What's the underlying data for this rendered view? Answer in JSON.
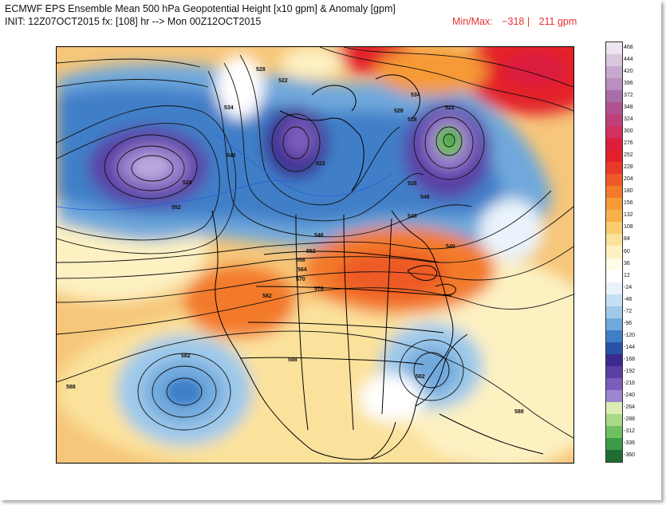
{
  "header": {
    "title": "ECMWF EPS Ensemble Mean 500 hPa Geopotential Height [x10 gpm] & Anomaly [gpm]",
    "subtitle": "INIT: 12Z07OCT2015 fx: [108] hr --> Mon 00Z12OCT2015",
    "minmax_label": "Min/Max:",
    "min_value": "−318 |",
    "max_value": "211 gpm"
  },
  "colorbar": {
    "labels": [
      "468",
      "444",
      "420",
      "396",
      "372",
      "348",
      "324",
      "300",
      "276",
      "252",
      "228",
      "204",
      "180",
      "156",
      "132",
      "108",
      "84",
      "60",
      "36",
      "12",
      "-24",
      "-48",
      "-72",
      "-96",
      "-120",
      "-144",
      "-168",
      "-192",
      "-216",
      "-240",
      "-264",
      "-288",
      "-312",
      "-336",
      "-360"
    ],
    "colors": [
      "#ece4ee",
      "#d8c6dc",
      "#c7a9cd",
      "#b98fbf",
      "#a86da9",
      "#b0528f",
      "#bf4079",
      "#d03260",
      "#dc1e3c",
      "#e3212a",
      "#e83a27",
      "#ee5a27",
      "#f37a2a",
      "#f69a36",
      "#f8b049",
      "#facb70",
      "#fbe29c",
      "#fdf1c2",
      "#fefbe8",
      "#ffffff",
      "#eaf3fb",
      "#c5e0f2",
      "#9ec9ea",
      "#6fa8dc",
      "#3f7fc8",
      "#2852a8",
      "#3a2a8f",
      "#5a3fa6",
      "#7a5cba",
      "#9e85cf",
      "#dcedb4",
      "#a9d887",
      "#6fbf60",
      "#3c9b46",
      "#1f6d33"
    ]
  },
  "map": {
    "contour_labels": [
      "528",
      "522",
      "534",
      "540",
      "528",
      "552",
      "546",
      "522",
      "528",
      "534",
      "528",
      "546",
      "552",
      "558",
      "564",
      "570",
      "576",
      "582",
      "582",
      "588",
      "582",
      "588",
      "588",
      "528",
      "522",
      "546",
      "540"
    ]
  }
}
